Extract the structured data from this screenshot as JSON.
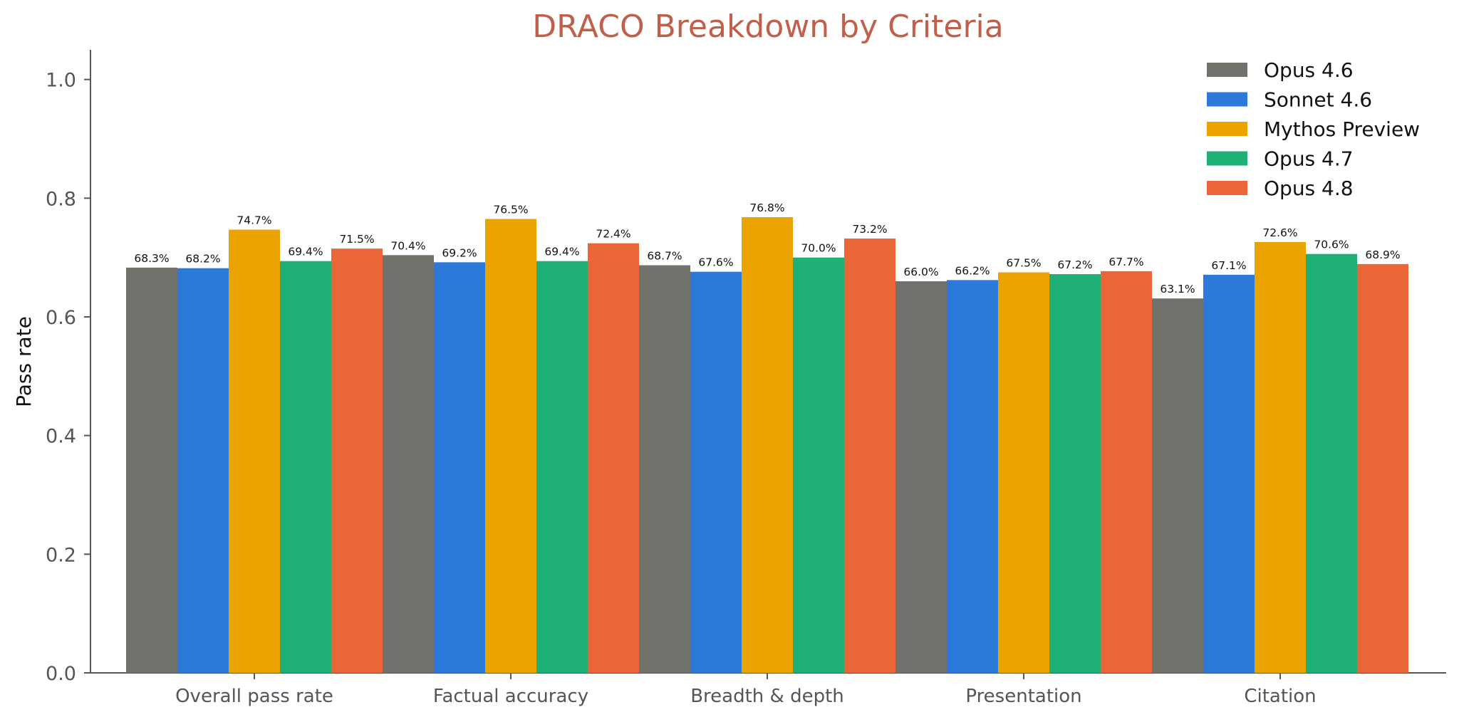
{
  "chart_data": {
    "type": "bar",
    "title": "DRACO Breakdown by Criteria",
    "xlabel": "",
    "ylabel": "Pass rate",
    "ylim": [
      0,
      1.05
    ],
    "yticks": [
      "0.0",
      "0.2",
      "0.4",
      "0.6",
      "0.8",
      "1.0"
    ],
    "ytick_values": [
      0,
      0.2,
      0.4,
      0.6,
      0.8,
      1.0
    ],
    "grid": false,
    "legend_position": "top-right",
    "categories": [
      "Overall pass rate",
      "Factual accuracy",
      "Breadth & depth",
      "Presentation",
      "Citation"
    ],
    "series": [
      {
        "name": "Opus 4.6",
        "color": "#73716b",
        "values": [
          0.683,
          0.704,
          0.687,
          0.66,
          0.631
        ],
        "labels": [
          "68.3%",
          "70.4%",
          "68.7%",
          "66.0%",
          "63.1%"
        ]
      },
      {
        "name": "Sonnet 4.6",
        "color": "#2b79d8",
        "values": [
          0.682,
          0.692,
          0.676,
          0.662,
          0.671
        ],
        "labels": [
          "68.2%",
          "69.2%",
          "67.6%",
          "66.2%",
          "67.1%"
        ]
      },
      {
        "name": "Mythos Preview",
        "color": "#eba300",
        "values": [
          0.747,
          0.765,
          0.768,
          0.675,
          0.726
        ],
        "labels": [
          "74.7%",
          "76.5%",
          "76.8%",
          "67.5%",
          "72.6%"
        ]
      },
      {
        "name": "Opus 4.7",
        "color": "#1fb078",
        "values": [
          0.694,
          0.694,
          0.7,
          0.672,
          0.706
        ],
        "labels": [
          "69.4%",
          "69.4%",
          "70.0%",
          "67.2%",
          "70.6%"
        ]
      },
      {
        "name": "Opus 4.8",
        "color": "#ea6636",
        "values": [
          0.715,
          0.724,
          0.732,
          0.677,
          0.689
        ],
        "labels": [
          "71.5%",
          "72.4%",
          "73.2%",
          "67.7%",
          "68.9%"
        ]
      }
    ]
  }
}
